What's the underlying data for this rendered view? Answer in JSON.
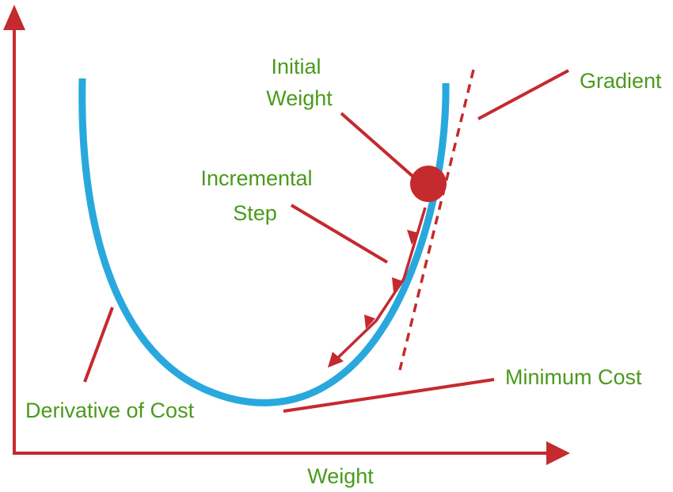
{
  "labels": {
    "initial_weight_line1": "Initial",
    "initial_weight_line2": "Weight",
    "gradient": "Gradient",
    "incremental_step_line1": "Incremental",
    "incremental_step_line2": "Step",
    "minimum_cost": "Minimum Cost",
    "derivative_of_cost": "Derivative of Cost",
    "x_axis": "Weight"
  },
  "colors": {
    "axis": "#c42a2e",
    "curve": "#29a8de",
    "label_text": "#4a9a1c",
    "pointer": "#c42a2e",
    "weight_point": "#c42a2e"
  }
}
